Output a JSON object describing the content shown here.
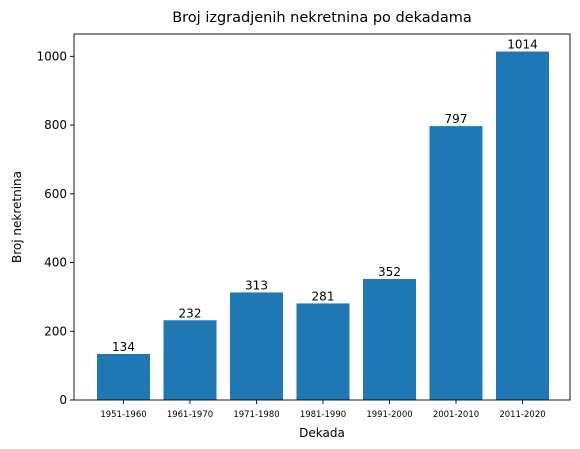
{
  "chart_data": {
    "type": "bar",
    "title": "Broj izgradjenih nekretnina po dekadama",
    "xlabel": "Dekada",
    "ylabel": "Broj nekretnina",
    "categories": [
      "1951-1960",
      "1961-1970",
      "1971-1980",
      "1981-1990",
      "1991-2000",
      "2001-2010",
      "2011-2020"
    ],
    "values": [
      134,
      232,
      313,
      281,
      352,
      797,
      1014
    ],
    "data_labels": [
      "134",
      "232",
      "313",
      "281",
      "352",
      "797",
      "1014"
    ],
    "ylim": [
      0,
      1065
    ],
    "yticks": [
      0,
      200,
      400,
      600,
      800,
      1000
    ],
    "ytick_labels": [
      "0",
      "200",
      "400",
      "600",
      "800",
      "1000"
    ],
    "grid": false,
    "bar_color": "#1f77b4"
  }
}
